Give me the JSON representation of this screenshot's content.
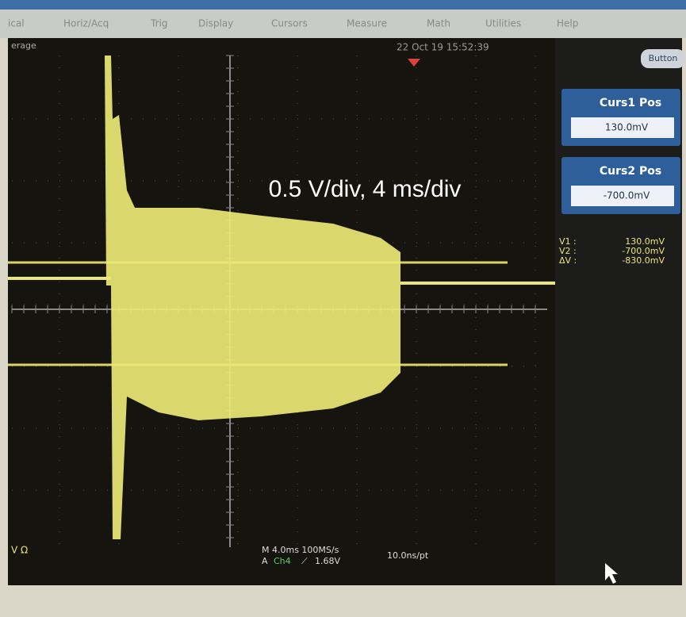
{
  "menu": [
    "ical",
    "Horiz/Acq",
    "Trig",
    "Display",
    "Cursors",
    "Measure",
    "Math",
    "Utilities",
    "Help"
  ],
  "status": {
    "mode": "erage",
    "timestamp": "22 Oct 19 15:52:39",
    "button": "Button"
  },
  "cursor_panels": [
    {
      "label": "Curs1 Pos",
      "value": "130.0mV"
    },
    {
      "label": "Curs2 Pos",
      "value": "-700.0mV"
    }
  ],
  "readouts": [
    {
      "label": "V1 :",
      "value": "130.0mV"
    },
    {
      "label": "V2 :",
      "value": "-700.0mV"
    },
    {
      "label": "ΔV :",
      "value": "-830.0mV"
    }
  ],
  "annotation": "0.5 V/div, 4 ms/div",
  "bottom": {
    "left": "V Ω",
    "timebase": "M 4.0ms 100MS/s",
    "trigger_prefix": "A",
    "trigger_channel": "Ch4",
    "trigger_slope": "⟋",
    "trigger_level": "1.68V",
    "resolution": "10.0ns/pt"
  }
}
